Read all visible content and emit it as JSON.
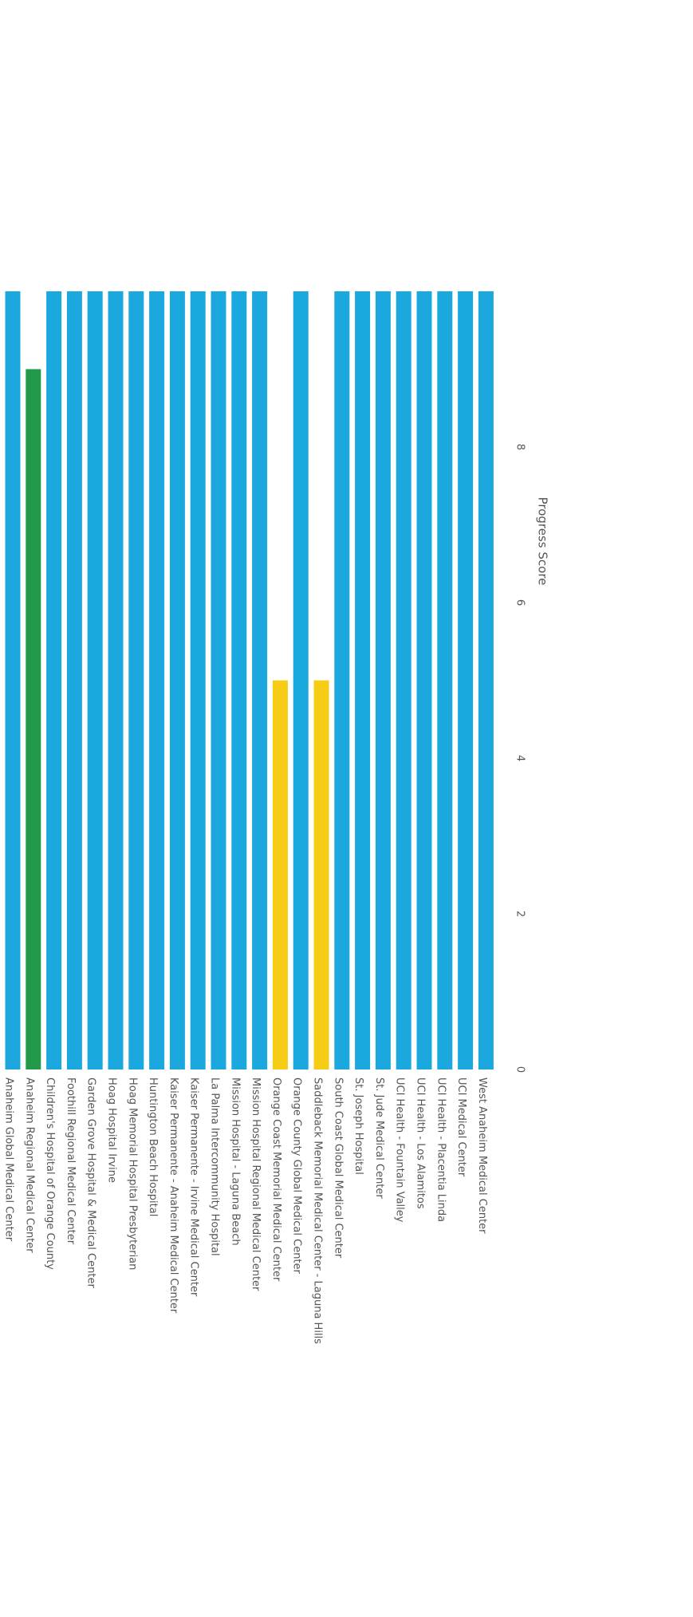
{
  "chart_data": {
    "type": "bar",
    "orientation": "horizontal",
    "rotated": "90deg clockwise",
    "title": "",
    "xlabel": "Progress Score",
    "ylabel": "",
    "xlim": [
      0,
      9.5
    ],
    "xticks": [
      0,
      2,
      4,
      6,
      8
    ],
    "grid": false,
    "legend": "none",
    "colors": {
      "blue": "#1ba8df",
      "green": "#229a4a",
      "yellow": "#f6cc14"
    },
    "categories": [
      "Anaheim Global Medical Center",
      "Anaheim Regional Medical Center",
      "Children's Hospital of Orange County",
      "Foothill Regional Medical Center",
      "Garden Grove Hospital & Medical Center",
      "Hoag Hospital Irvine",
      "Hoag Memorial Hospital Presbyterian",
      "Huntington Beach Hospital",
      "Kaiser Permanente - Anaheim Medical Center",
      "Kaiser Permanente - Irvine Medical Center",
      "La Palma Intercommunity Hospital",
      "Mission Hospital - Laguna Beach",
      "Mission Hospital Regional Medical Center",
      "Orange Coast Memorial Medical Center",
      "Orange County Global Medical Center",
      "Saddleback Memorial Medical Center - Laguna Hills",
      "South Coast Global Medical Center",
      "St. Joseph Hospital",
      "St. Jude Medical Center",
      "UCI Health - Fountain Valley",
      "UCI Health - Los Alamitos",
      "UCI Health - Placentia Linda",
      "UCI Medical Center",
      "West Anaheim Medical Center"
    ],
    "values": [
      10,
      9,
      10,
      10,
      10,
      10,
      10,
      10,
      10,
      10,
      10,
      10,
      10,
      5,
      10,
      5,
      10,
      10,
      10,
      10,
      10,
      10,
      10,
      10
    ],
    "bar_colors": [
      "blue",
      "green",
      "blue",
      "blue",
      "blue",
      "blue",
      "blue",
      "blue",
      "blue",
      "blue",
      "blue",
      "blue",
      "blue",
      "yellow",
      "blue",
      "yellow",
      "blue",
      "blue",
      "blue",
      "blue",
      "blue",
      "blue",
      "blue",
      "blue"
    ]
  }
}
